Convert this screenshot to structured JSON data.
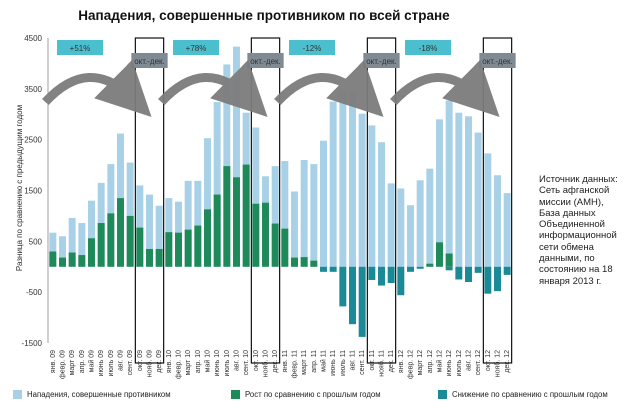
{
  "chart_data": {
    "type": "bar",
    "title": "Нападения, совершенные противником по всей стране",
    "ylabel": "Разница по сравнению с предыдущим годом",
    "ylim": [
      -1500,
      4500
    ],
    "yticks": [
      -1500,
      -500,
      500,
      1500,
      2500,
      3500,
      4500
    ],
    "categories": [
      "янв 09",
      "февр 09",
      "март 09",
      "апр 09",
      "май 09",
      "июнь 09",
      "июль 09",
      "авг 09",
      "сент 09",
      "окт 09",
      "нояб 09",
      "дек 09",
      "янв 10",
      "февр 10",
      "март 10",
      "апр 10",
      "май 10",
      "июнь 10",
      "июль 10",
      "авг 10",
      "сент 10",
      "окт 10",
      "нояб 10",
      "дек 10",
      "янв 11",
      "февр 11",
      "март 11",
      "апр 11",
      "май 11",
      "июнь 11",
      "июль 11",
      "авг 11",
      "сент 11",
      "окт 11",
      "нояб 11",
      "дек 11",
      "янв 12",
      "февр 12",
      "март 12",
      "апр 12",
      "май 12",
      "июнь 12",
      "июль 12",
      "авг 12",
      "сент 12",
      "окт 12",
      "нояб 12",
      "дек 12"
    ],
    "x_tick_labels": [
      "янв. 09",
      "февр. 09",
      "март 09",
      "апр. 09",
      "май 09",
      "июнь 09",
      "июль 09",
      "авг. 09",
      "сент. 09",
      "окт. 09",
      "нояб. 09",
      "дек. 09",
      "янв. 10",
      "февр. 10",
      "март 10",
      "апр. 10",
      "май 10",
      "июнь 10",
      "июль 10",
      "авг. 10",
      "сент. 10",
      "окт. 10",
      "нояб. 10",
      "дек. 10",
      "янв. 11",
      "февр. 11",
      "март 11",
      "апр. 11",
      "май 11",
      "июнь 11",
      "июль 11",
      "авг. 11",
      "сент. 11",
      "окт. 11",
      "нояб. 11",
      "дек. 11",
      "янв. 12",
      "февр. 12",
      "март 12",
      "апр. 12",
      "май 12",
      "июнь 12",
      "июль 12",
      "авг. 12",
      "сент. 12",
      "окт. 12",
      "нояб. 12",
      "дек. 12"
    ],
    "series": [
      {
        "name": "Нападения, совершенные противником",
        "color": "#a8d1e7",
        "values": [
          670,
          600,
          960,
          860,
          1300,
          1650,
          2020,
          2620,
          2050,
          1600,
          1420,
          1200,
          1350,
          1280,
          1690,
          1690,
          2530,
          3240,
          3980,
          4330,
          3030,
          2740,
          1780,
          1980,
          2080,
          1480,
          2100,
          2020,
          2480,
          3250,
          3450,
          3450,
          3010,
          2780,
          2450,
          1640,
          1540,
          1210,
          1700,
          1930,
          2900,
          3270,
          3030,
          2960,
          2640,
          2230,
          1800,
          1450
        ]
      },
      {
        "name": "Рост по сравнению с прошлым годом",
        "color": "#1e8a5a",
        "values": [
          300,
          180,
          280,
          230,
          560,
          860,
          1050,
          1350,
          1000,
          770,
          350,
          350,
          680,
          670,
          730,
          810,
          1130,
          1420,
          1980,
          1760,
          2010,
          1240,
          1260,
          850,
          750,
          180,
          190,
          120,
          0,
          0,
          0,
          0,
          0,
          0,
          0,
          0,
          0,
          0,
          0,
          60,
          480,
          260,
          0,
          0,
          0,
          0,
          0,
          0
        ]
      },
      {
        "name": "Снижение по сравнению с прошлым годом",
        "color": "#1a8a96",
        "values": [
          0,
          0,
          0,
          0,
          0,
          0,
          0,
          0,
          0,
          0,
          0,
          0,
          0,
          0,
          0,
          0,
          0,
          0,
          0,
          0,
          0,
          0,
          0,
          0,
          0,
          0,
          0,
          0,
          -100,
          -100,
          -780,
          -1130,
          -1380,
          -260,
          -370,
          -320,
          -560,
          -100,
          -40,
          0,
          0,
          -70,
          -250,
          -300,
          -120,
          -530,
          -480,
          -160
        ]
      }
    ],
    "periods": [
      {
        "label": "+51%",
        "highlight": "окт.-дек."
      },
      {
        "label": "+78%",
        "highlight": "окт.-дек."
      },
      {
        "label": "-12%",
        "highlight": "окт.-дек."
      },
      {
        "label": "-18%",
        "highlight": "окт.-дек."
      }
    ],
    "legend_placement": "bottom",
    "grid": false
  },
  "source_text": "Источник данных: Сеть афганской миссии (АМН), База данных Объединенной информационной сети обмена данными, по состоянию на 18 января 2013 г.",
  "legend": {
    "items": [
      {
        "label": "Нападения, совершенные противником",
        "color": "#a8d1e7"
      },
      {
        "label": "Рост по сравнению с прошлым годом",
        "color": "#1e8a5a"
      },
      {
        "label": "Снижение по сравнению с прошлым годом",
        "color": "#1a8a96"
      }
    ]
  },
  "colors": {
    "pct_box": "#4cbfce",
    "okt_box": "#7f8a93",
    "arrow": "#7c7c7c"
  }
}
